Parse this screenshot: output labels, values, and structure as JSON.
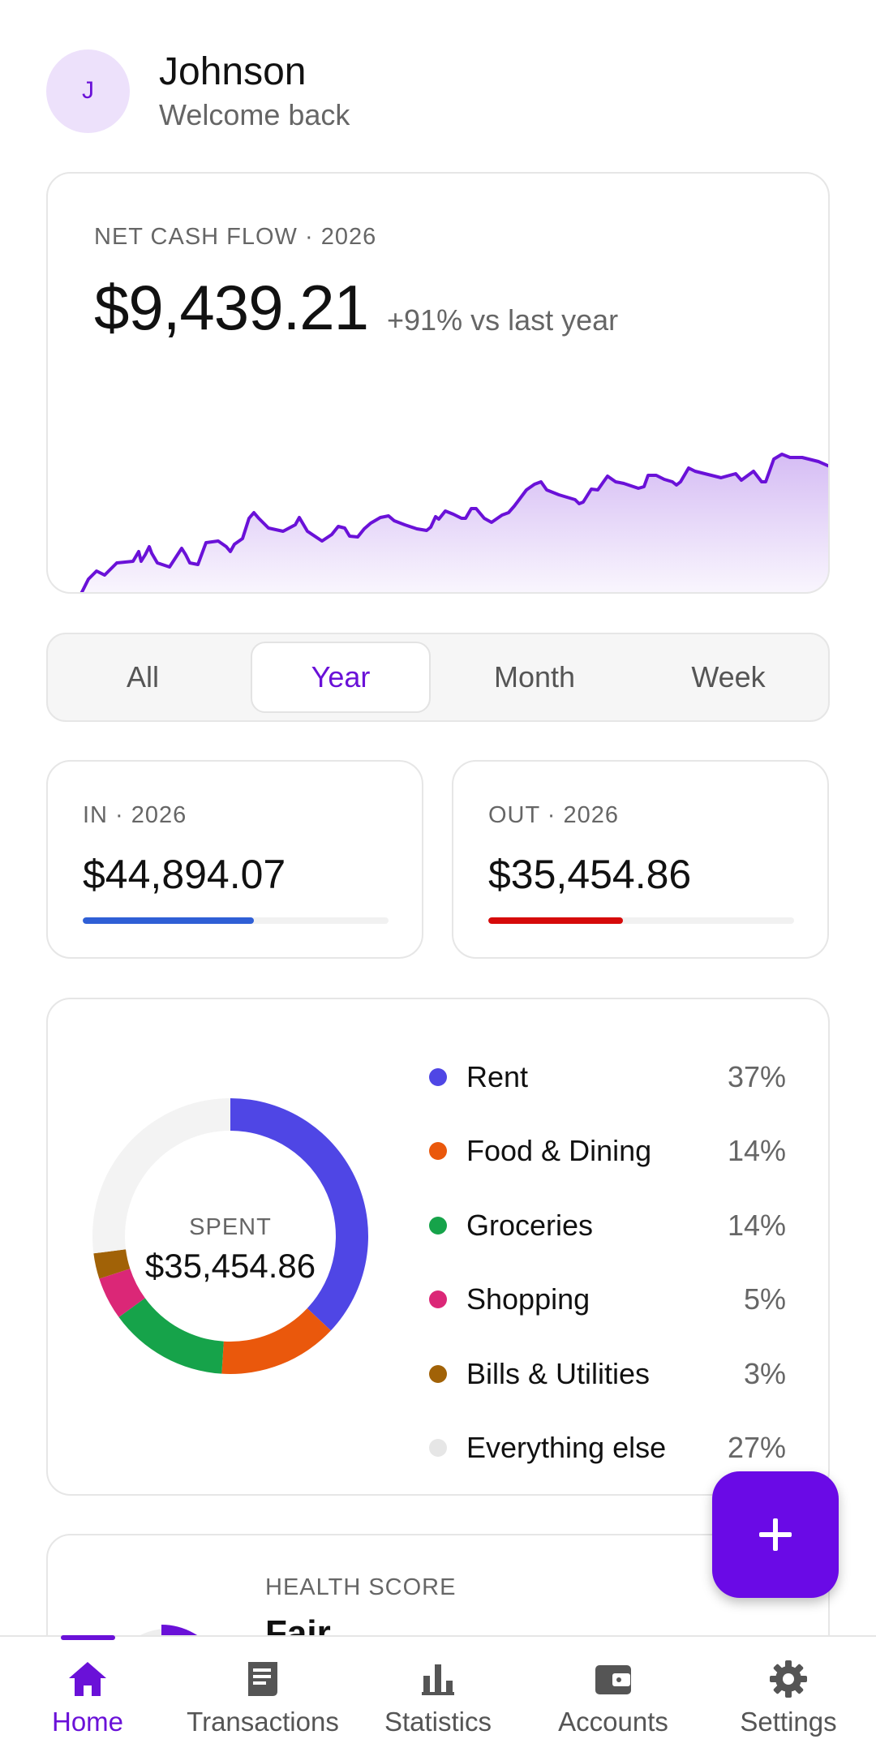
{
  "header": {
    "avatar_initial": "J",
    "user_name": "Johnson",
    "subtitle": "Welcome back"
  },
  "cash_flow": {
    "label": "NET CASH FLOW · 2026",
    "amount": "$9,439.21",
    "delta": "+91% vs last year",
    "line_color": "#6a11d8"
  },
  "period_tabs": {
    "items": [
      "All",
      "Year",
      "Month",
      "Week"
    ],
    "selected": "Year"
  },
  "in_card": {
    "label": "IN · 2026",
    "amount": "$44,894.07",
    "bar_fraction": 0.56,
    "bar_color": "#2f5fd6"
  },
  "out_card": {
    "label": "OUT · 2026",
    "amount": "$35,454.86",
    "bar_fraction": 0.44,
    "bar_color": "#d60a0a"
  },
  "spending": {
    "center_label": "SPENT",
    "center_value": "$35,454.86",
    "categories": [
      {
        "name": "Rent",
        "percent": "37%",
        "value": 37,
        "color": "#4f46e5"
      },
      {
        "name": "Food & Dining",
        "percent": "14%",
        "value": 14,
        "color": "#ea580c"
      },
      {
        "name": "Groceries",
        "percent": "14%",
        "value": 14,
        "color": "#16a34a"
      },
      {
        "name": "Shopping",
        "percent": "5%",
        "value": 5,
        "color": "#db2777"
      },
      {
        "name": "Bills & Utilities",
        "percent": "3%",
        "value": 3,
        "color": "#a16207"
      },
      {
        "name": "Everything else",
        "percent": "27%",
        "value": 27,
        "color": "#f3f3f3"
      }
    ]
  },
  "health": {
    "label": "HEALTH SCORE",
    "value": "Fair"
  },
  "fab": {
    "icon": "plus-icon"
  },
  "bottom_nav": [
    {
      "label": "Home",
      "icon": "home-icon",
      "active": true
    },
    {
      "label": "Transactions",
      "icon": "receipt-icon",
      "active": false
    },
    {
      "label": "Statistics",
      "icon": "bar-chart-icon",
      "active": false
    },
    {
      "label": "Accounts",
      "icon": "wallet-icon",
      "active": false
    },
    {
      "label": "Settings",
      "icon": "gear-icon",
      "active": false
    }
  ],
  "colors": {
    "accent": "#6a11d8",
    "fab": "#6a0ae6"
  }
}
